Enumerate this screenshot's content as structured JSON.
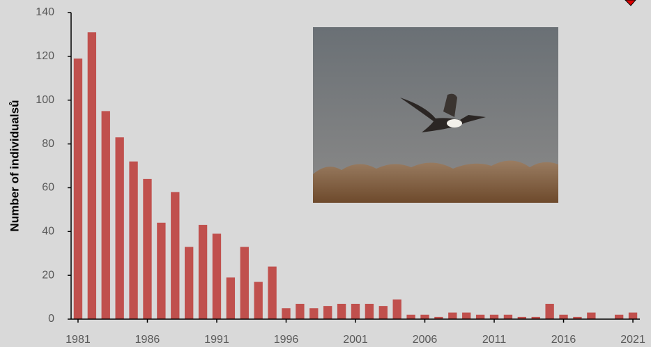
{
  "chart_data": {
    "type": "bar",
    "ylabel": "Number of individualsů",
    "x": [
      1981,
      1982,
      1983,
      1984,
      1985,
      1986,
      1987,
      1988,
      1989,
      1990,
      1991,
      1992,
      1993,
      1994,
      1995,
      1996,
      1997,
      1998,
      1999,
      2000,
      2001,
      2002,
      2003,
      2004,
      2005,
      2006,
      2007,
      2008,
      2009,
      2010,
      2011,
      2012,
      2013,
      2014,
      2015,
      2016,
      2017,
      2018,
      2019,
      2020,
      2021
    ],
    "values": [
      119,
      131,
      95,
      83,
      72,
      64,
      44,
      58,
      33,
      43,
      39,
      19,
      33,
      17,
      24,
      5,
      7,
      5,
      6,
      7,
      7,
      7,
      6,
      9,
      2,
      2,
      1,
      3,
      3,
      2,
      2,
      2,
      1,
      1,
      7,
      2,
      1,
      3,
      0,
      2,
      3
    ],
    "color": "#c0504d",
    "xlim": [
      1980.5,
      2021.5
    ],
    "xticks": [
      1981,
      1986,
      1991,
      1996,
      2001,
      2006,
      2011,
      2016,
      2021
    ],
    "ylim": [
      0,
      140
    ],
    "yticks": [
      0,
      20,
      40,
      60,
      80,
      100,
      120,
      140
    ],
    "grid": false
  }
}
